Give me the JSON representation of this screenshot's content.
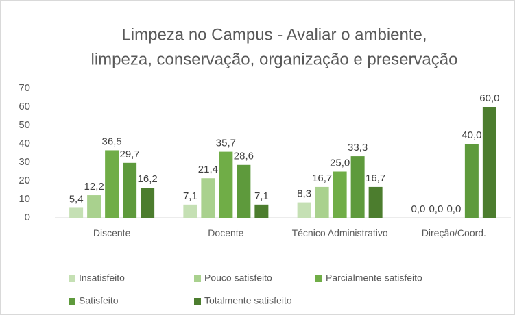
{
  "chart_data": {
    "type": "bar",
    "title": [
      "Limpeza no Campus - Avaliar o ambiente,",
      "limpeza, conservação, organização e preservação"
    ],
    "categories": [
      "Discente",
      "Docente",
      "Técnico Administrativo",
      "Direção/Coord."
    ],
    "series": [
      {
        "name": "Insatisfeito",
        "color": "#c5e0b4",
        "values": [
          5.4,
          7.1,
          8.3,
          0
        ],
        "value_labels": [
          "5,4",
          "7,1",
          "8,3",
          "0,0"
        ]
      },
      {
        "name": "Pouco satisfeito",
        "color": "#a9d18e",
        "values": [
          12.2,
          21.4,
          16.7,
          0
        ],
        "value_labels": [
          "12,2",
          "21,4",
          "16,7",
          "0,0"
        ]
      },
      {
        "name": "Parcialmente satisfeito",
        "color": "#70ad47",
        "values": [
          36.5,
          35.7,
          25.0,
          0
        ],
        "value_labels": [
          "36,5",
          "35,7",
          "25,0",
          "0,0"
        ]
      },
      {
        "name": "Satisfeito",
        "color": "#5e9a3c",
        "values": [
          29.7,
          28.6,
          33.3,
          40.0
        ],
        "value_labels": [
          "29,7",
          "28,6",
          "33,3",
          "40,0"
        ]
      },
      {
        "name": "Totalmente satisfeito",
        "color": "#4c7d2e",
        "values": [
          16.2,
          7.1,
          16.7,
          60.0
        ],
        "value_labels": [
          "16,2",
          "7,1",
          "16,7",
          "60,0"
        ]
      }
    ],
    "ylim": [
      0,
      70
    ],
    "yticks": [
      0,
      10,
      20,
      30,
      40,
      50,
      60,
      70
    ],
    "grid": false,
    "legend": "bottom"
  }
}
